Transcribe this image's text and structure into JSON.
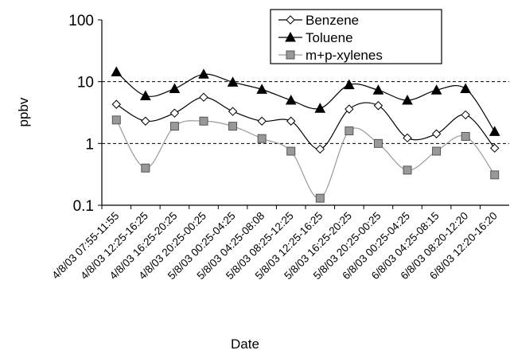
{
  "chart_data": {
    "type": "line",
    "x_label": "Date",
    "y_label": "ppbv",
    "categories": [
      "4/8/03 07:55-11:55",
      "4/8/03 12:25-16:25",
      "4/8/03 16:25-20:25",
      "4/8/03 20:25-00:25",
      "5/8/03 00:25-04:25",
      "5/8/03 04:25-08:08",
      "5/8/03 08:25-12:25",
      "5/8/03 12:25-16:25",
      "5/8/03 16:25-20:25",
      "5/8/03 20:25-00:25",
      "6/8/03 00:25-04:25",
      "6/8/03 04:25-08:15",
      "6/8/03 08:20-12:20",
      "6/8/03 12:20-16:20"
    ],
    "series": [
      {
        "name": "Benzene",
        "color": "#000000",
        "marker": "diamond",
        "values": [
          4.3,
          2.3,
          3.1,
          5.6,
          3.3,
          2.3,
          2.3,
          0.81,
          3.6,
          4.1,
          1.23,
          1.43,
          2.9,
          0.84
        ]
      },
      {
        "name": "Toluene",
        "color": "#000000",
        "marker": "triangle",
        "values": [
          14.4,
          5.9,
          7.7,
          13.2,
          9.8,
          7.5,
          5.0,
          3.7,
          8.9,
          7.3,
          5.0,
          7.3,
          7.7,
          1.56
        ]
      },
      {
        "name": "m+p-xylenes",
        "color": "#999999",
        "marker": "square",
        "values": [
          2.4,
          0.4,
          1.9,
          2.3,
          1.9,
          1.2,
          0.75,
          0.13,
          1.6,
          1.0,
          0.37,
          0.75,
          1.3,
          0.31
        ]
      }
    ],
    "log_y": true,
    "ylim": [
      0.1,
      100
    ],
    "yticks": [
      0.1,
      1,
      10,
      100
    ],
    "grid_y": [
      1,
      10
    ]
  }
}
